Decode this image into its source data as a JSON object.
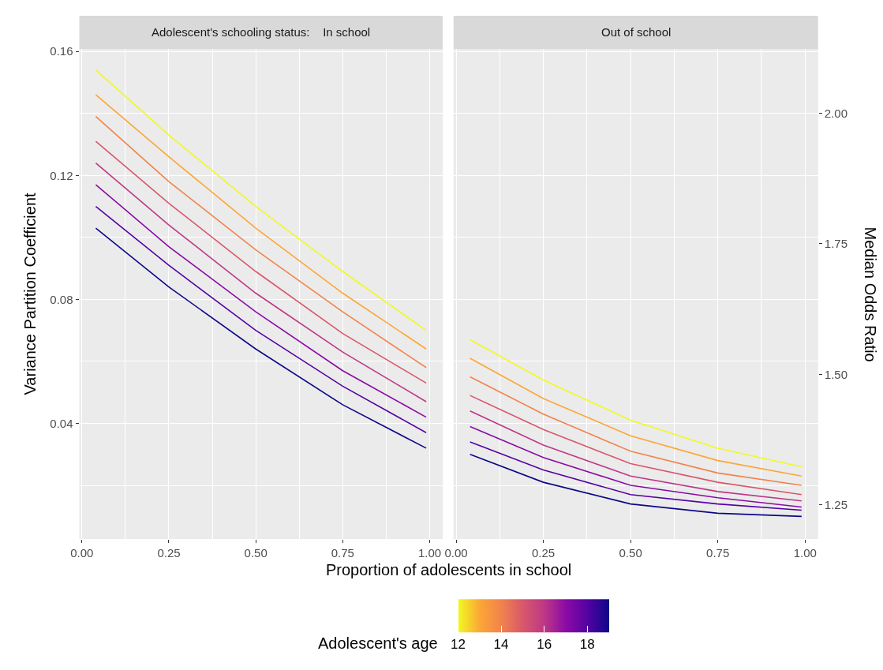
{
  "chart_data": [
    {
      "type": "line",
      "title": "Adolescent's schooling status:    In school",
      "xlabel": "Proportion of adolescents in school",
      "ylabel": "Variance Partition Coefficient",
      "clabel": "Adolescent's age",
      "clim": [
        12,
        19
      ],
      "cticks": [
        12,
        14,
        16,
        18
      ],
      "x": [
        0.04,
        0.25,
        0.5,
        0.75,
        0.99
      ],
      "xlim": [
        -0.0075,
        1.0375
      ],
      "xticks": [
        {
          "value": 0,
          "label": "0.00"
        },
        {
          "value": 0.25,
          "label": "0.25"
        },
        {
          "value": 0.5,
          "label": "0.50"
        },
        {
          "value": 0.75,
          "label": "0.75"
        },
        {
          "value": 1,
          "label": "1.00"
        }
      ],
      "ylim": [
        0.0027,
        0.1608
      ],
      "yticks": [
        0.04,
        0.08,
        0.12,
        0.16
      ],
      "grid": true,
      "series": [
        {
          "color": "#f0f921",
          "values": [
            0.154,
            0.133,
            0.11,
            0.089,
            0.07
          ]
        },
        {
          "color": "#fca636",
          "values": [
            0.146,
            0.126,
            0.103,
            0.082,
            0.064
          ]
        },
        {
          "color": "#f1834c",
          "values": [
            0.139,
            0.118,
            0.096,
            0.076,
            0.058
          ]
        },
        {
          "color": "#d8576b",
          "values": [
            0.131,
            0.111,
            0.089,
            0.069,
            0.053
          ]
        },
        {
          "color": "#bd3786",
          "values": [
            0.124,
            0.104,
            0.082,
            0.063,
            0.047
          ]
        },
        {
          "color": "#8b0aa5",
          "values": [
            0.117,
            0.097,
            0.076,
            0.057,
            0.042
          ]
        },
        {
          "color": "#5402a3",
          "values": [
            0.11,
            0.091,
            0.07,
            0.052,
            0.037
          ]
        },
        {
          "color": "#0d0887",
          "values": [
            0.103,
            0.084,
            0.064,
            0.046,
            0.032
          ]
        }
      ]
    },
    {
      "type": "line",
      "title": "Out of school",
      "y2label": "Median Odds Ratio",
      "tick_labels": "x",
      "x": [
        0.04,
        0.25,
        0.5,
        0.75,
        0.99
      ],
      "xlim": [
        -0.0075,
        1.0375
      ],
      "xticks": [
        {
          "value": 0,
          "label": "0.00"
        },
        {
          "value": 0.25,
          "label": "0.25"
        },
        {
          "value": 0.5,
          "label": "0.50"
        },
        {
          "value": 0.75,
          "label": "0.75"
        },
        {
          "value": 1,
          "label": "1.00"
        }
      ],
      "ylim": [
        0.0027,
        0.1608
      ],
      "yticks": [
        0.04,
        0.08,
        0.12,
        0.16
      ],
      "y2lim": [
        1.185,
        2.123
      ],
      "y2ticks": [
        {
          "value": 1.25,
          "label": "1.25"
        },
        {
          "value": 1.5,
          "label": "1.50"
        },
        {
          "value": 1.75,
          "label": "1.75"
        },
        {
          "value": 2,
          "label": "2.00"
        }
      ],
      "grid": true,
      "series": [
        {
          "color": "#f0f921",
          "values": [
            0.067,
            0.054,
            0.041,
            0.032,
            0.026
          ]
        },
        {
          "color": "#fca636",
          "values": [
            0.061,
            0.048,
            0.036,
            0.028,
            0.023
          ]
        },
        {
          "color": "#f1834c",
          "values": [
            0.055,
            0.043,
            0.031,
            0.024,
            0.02
          ]
        },
        {
          "color": "#d8576b",
          "values": [
            0.049,
            0.038,
            0.027,
            0.021,
            0.017
          ]
        },
        {
          "color": "#bd3786",
          "values": [
            0.044,
            0.033,
            0.023,
            0.018,
            0.015
          ]
        },
        {
          "color": "#8b0aa5",
          "values": [
            0.039,
            0.029,
            0.02,
            0.016,
            0.013
          ]
        },
        {
          "color": "#5402a3",
          "values": [
            0.034,
            0.025,
            0.017,
            0.014,
            0.012
          ]
        },
        {
          "color": "#0d0887",
          "values": [
            0.03,
            0.021,
            0.014,
            0.011,
            0.01
          ]
        }
      ]
    }
  ]
}
